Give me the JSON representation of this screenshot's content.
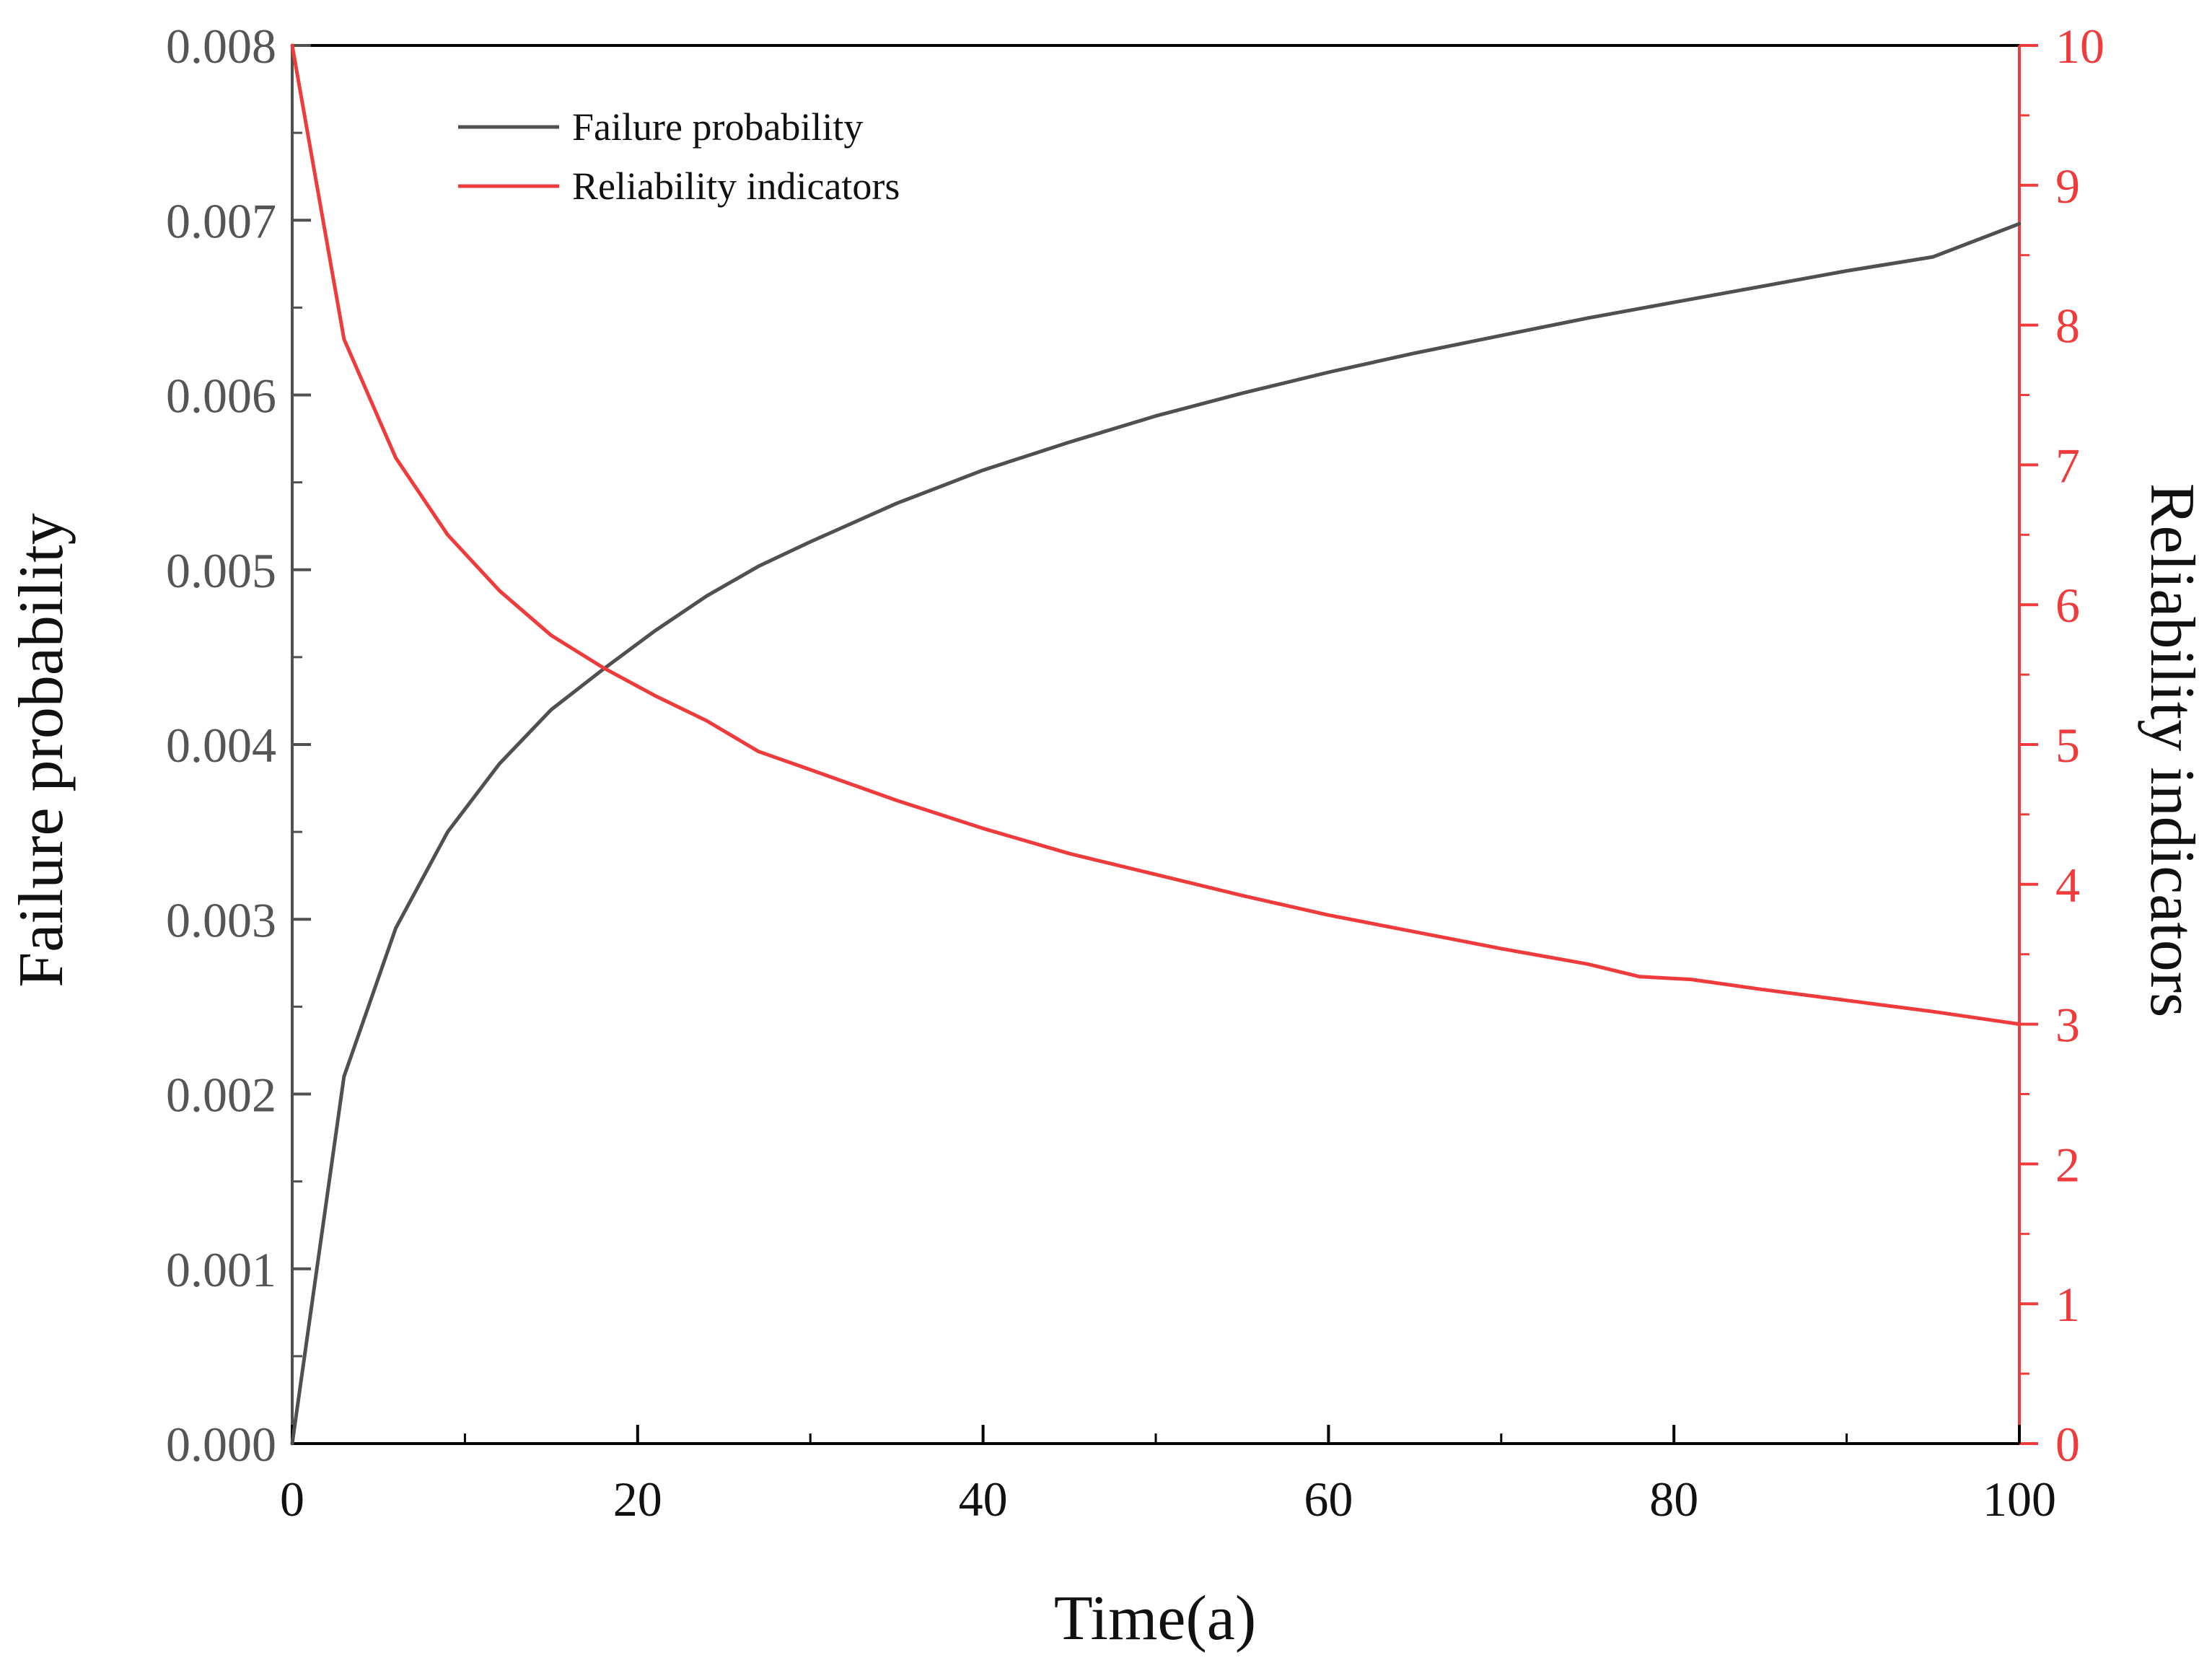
{
  "chart_data": {
    "type": "line",
    "xlabel": "Time(a)",
    "ylabel_left": "Failure probability",
    "ylabel_right": "Reliability indicators",
    "xlim": [
      0,
      100
    ],
    "ylim_left": [
      0,
      0.008
    ],
    "ylim_right": [
      0,
      10
    ],
    "xticks": [
      "0",
      "20",
      "40",
      "60",
      "80",
      "100"
    ],
    "yticks_left": [
      "0.000",
      "0.001",
      "0.002",
      "0.003",
      "0.004",
      "0.005",
      "0.006",
      "0.007",
      "0.008"
    ],
    "yticks_right": [
      "0",
      "1",
      "2",
      "3",
      "4",
      "5",
      "6",
      "7",
      "8",
      "9",
      "10"
    ],
    "legend_position": "top-left",
    "grid": false,
    "series": [
      {
        "name": "Failure probability",
        "axis": "left",
        "color": "#505050",
        "x": [
          0,
          3,
          6,
          9,
          12,
          15,
          18,
          21,
          24,
          27,
          30,
          35,
          40,
          45,
          50,
          55,
          60,
          65,
          70,
          75,
          80,
          85,
          90,
          95,
          100
        ],
        "y": [
          0,
          0.0021,
          0.00295,
          0.0035,
          0.00389,
          0.0042,
          0.00443,
          0.00465,
          0.00485,
          0.00502,
          0.00516,
          0.00538,
          0.00557,
          0.00573,
          0.00588,
          0.00601,
          0.00613,
          0.00624,
          0.00634,
          0.00644,
          0.00653,
          0.00662,
          0.00671,
          0.00679,
          0.00698
        ]
      },
      {
        "name": "Reliability indicators",
        "axis": "right",
        "color": "#ef3b3b",
        "x": [
          0,
          3,
          6,
          9,
          12,
          15,
          18,
          21,
          24,
          27,
          30,
          35,
          40,
          45,
          50,
          55,
          60,
          65,
          70,
          75,
          78,
          81,
          85,
          90,
          95,
          100
        ],
        "y": [
          10,
          7.9,
          7.05,
          6.5,
          6.1,
          5.78,
          5.55,
          5.35,
          5.17,
          4.95,
          4.82,
          4.6,
          4.4,
          4.22,
          4.07,
          3.92,
          3.78,
          3.66,
          3.54,
          3.43,
          3.34,
          3.32,
          3.25,
          3.17,
          3.09,
          3.0
        ]
      }
    ]
  }
}
